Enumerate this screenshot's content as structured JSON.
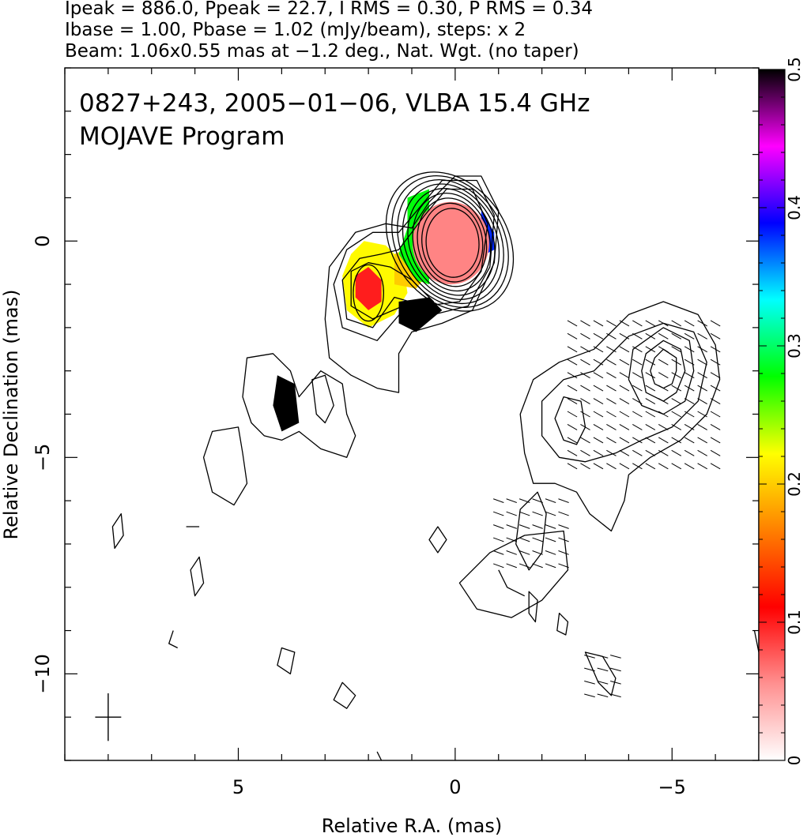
{
  "header": {
    "line1": "Ipeak = 886.0, Ppeak = 22.7, I RMS = 0.30, P RMS = 0.34",
    "line2": "Ibase = 1.00, Pbase = 1.02 (mJy/beam), steps: x 2",
    "line3": "Beam: 1.06x0.55 mas at −1.2 deg., Nat. Wgt. (no taper)"
  },
  "chart_data": {
    "type": "heatmap",
    "title": "0827+243, 2005−01−06, VLBA 15.4 GHz",
    "subtitle": "MOJAVE Program",
    "xlabel": "Relative R.A. (mas)",
    "ylabel": "Relative Declination (mas)",
    "xlim": [
      9.0,
      -7.0
    ],
    "ylim": [
      -12.0,
      4.0
    ],
    "x_ticks": [
      5,
      0,
      -5
    ],
    "x_tick_labels": [
      "5",
      "0",
      "−5"
    ],
    "y_ticks": [
      0,
      -5,
      -10
    ],
    "y_tick_labels": [
      "0",
      "−5",
      "−10"
    ],
    "colorbar": {
      "range": [
        0,
        0.5
      ],
      "ticks": [
        0,
        0.1,
        0.2,
        0.3,
        0.4,
        0.5
      ],
      "tick_labels": [
        "0",
        "0.1",
        "0.2",
        "0.3",
        "0.4",
        "0.5"
      ],
      "stops": [
        "#ffffff",
        "#ff9090",
        "#ff0000",
        "#ff8000",
        "#ffff00",
        "#00ff00",
        "#00ffff",
        "#0000ff",
        "#ff00ff",
        "#000000"
      ]
    },
    "core": {
      "x": 0.1,
      "y": -0.05,
      "rx": 0.52,
      "ry": 0.68,
      "angle": 0,
      "contour_levels": 9
    },
    "jet_knot": {
      "x": 2.0,
      "y": -1.2,
      "rx": 0.35,
      "ry": 0.65,
      "angle": 0
    },
    "outer_envelope": [
      [
        1.0,
        0.3
      ],
      [
        0.6,
        0.9
      ],
      [
        0.0,
        1.5
      ],
      [
        -0.6,
        1.5
      ],
      [
        -1.0,
        0.7
      ],
      [
        -0.9,
        -0.5
      ],
      [
        -0.4,
        -1.6
      ],
      [
        0.3,
        -1.9
      ],
      [
        1.0,
        -2.1
      ],
      [
        1.3,
        -2.6
      ],
      [
        1.3,
        -3.5
      ],
      [
        1.8,
        -3.4
      ],
      [
        2.4,
        -3.1
      ],
      [
        2.9,
        -2.7
      ],
      [
        3.0,
        -1.8
      ],
      [
        2.9,
        -0.6
      ],
      [
        2.3,
        0.2
      ],
      [
        1.6,
        0.4
      ]
    ],
    "jet_contours": [
      [
        [
          1.3,
          0.2
        ],
        [
          0.8,
          0.8
        ],
        [
          0.3,
          1.4
        ],
        [
          -0.5,
          1.4
        ],
        [
          -0.9,
          0.6
        ],
        [
          -0.8,
          -0.6
        ],
        [
          -0.3,
          -1.5
        ],
        [
          0.5,
          -1.7
        ],
        [
          1.2,
          -1.6
        ],
        [
          1.8,
          -2.3
        ],
        [
          2.6,
          -2.0
        ],
        [
          2.8,
          -1.0
        ],
        [
          2.5,
          -0.2
        ],
        [
          1.9,
          0.2
        ]
      ],
      [
        [
          1.3,
          -0.2
        ],
        [
          0.7,
          0.6
        ],
        [
          0.2,
          1.2
        ],
        [
          -0.4,
          1.2
        ],
        [
          -0.75,
          0.4
        ],
        [
          -0.6,
          -0.7
        ],
        [
          -0.1,
          -1.4
        ],
        [
          0.7,
          -1.5
        ],
        [
          1.4,
          -1.3
        ],
        [
          1.9,
          -2.0
        ],
        [
          2.5,
          -1.8
        ],
        [
          2.6,
          -0.9
        ],
        [
          2.2,
          -0.4
        ],
        [
          1.7,
          -0.3
        ]
      ],
      [
        [
          1.5,
          -0.6
        ],
        [
          1.0,
          -0.9
        ],
        [
          0.5,
          -1.4
        ],
        [
          1.2,
          -1.5
        ],
        [
          1.9,
          -1.8
        ],
        [
          2.4,
          -1.5
        ],
        [
          2.4,
          -0.7
        ],
        [
          2.0,
          -0.5
        ]
      ]
    ],
    "polarization_patches": [
      {
        "id": "knot-ring",
        "points": [
          [
            2.4,
            -0.3
          ],
          [
            2.6,
            -0.8
          ],
          [
            2.5,
            -1.6
          ],
          [
            2.0,
            -2.0
          ],
          [
            1.4,
            -1.7
          ],
          [
            1.1,
            -1.2
          ],
          [
            1.2,
            -0.5
          ],
          [
            1.6,
            -0.1
          ],
          [
            2.1,
            0.0
          ]
        ],
        "value": 0.22
      },
      {
        "id": "knot-inner",
        "points": [
          [
            2.0,
            -0.6
          ],
          [
            1.7,
            -0.9
          ],
          [
            1.7,
            -1.4
          ],
          [
            2.0,
            -1.6
          ],
          [
            2.3,
            -1.3
          ],
          [
            2.3,
            -0.8
          ]
        ],
        "value": 0.1
      },
      {
        "id": "bridge",
        "points": [
          [
            1.4,
            -0.3
          ],
          [
            0.7,
            0.0
          ],
          [
            0.5,
            -0.6
          ],
          [
            0.9,
            -1.1
          ],
          [
            1.4,
            -1.0
          ]
        ],
        "value": 0.2
      },
      {
        "id": "core-rim-east",
        "points": [
          [
            1.1,
            1.0
          ],
          [
            0.6,
            1.2
          ],
          [
            0.6,
            -1.0
          ],
          [
            0.9,
            -0.9
          ],
          [
            1.3,
            -0.3
          ],
          [
            1.1,
            0.3
          ]
        ],
        "value": 0.28
      },
      {
        "id": "core-rim-west",
        "points": [
          [
            -0.6,
            0.7
          ],
          [
            -0.9,
            0.2
          ],
          [
            -0.9,
            -0.2
          ],
          [
            -0.7,
            -0.3
          ],
          [
            -0.6,
            0.2
          ]
        ],
        "value": 0.38
      },
      {
        "id": "core-south",
        "points": [
          [
            1.3,
            -1.4
          ],
          [
            0.6,
            -1.3
          ],
          [
            0.3,
            -1.6
          ],
          [
            0.9,
            -2.1
          ],
          [
            1.3,
            -1.9
          ]
        ],
        "value": 0.5
      },
      {
        "id": "knot-far",
        "points": [
          [
            4.1,
            -3.1
          ],
          [
            3.7,
            -3.3
          ],
          [
            3.6,
            -4.2
          ],
          [
            4.0,
            -4.4
          ],
          [
            4.2,
            -3.8
          ]
        ],
        "value": 0.5
      }
    ],
    "components": [
      {
        "id": "west-blob",
        "contours": [
          [
            [
              -2.4,
              -2.8
            ],
            [
              -3.2,
              -2.5
            ],
            [
              -4.0,
              -1.7
            ],
            [
              -4.8,
              -1.4
            ],
            [
              -5.6,
              -1.7
            ],
            [
              -6.0,
              -2.4
            ],
            [
              -6.1,
              -3.2
            ],
            [
              -5.8,
              -4.0
            ],
            [
              -5.2,
              -4.6
            ],
            [
              -4.5,
              -5.0
            ],
            [
              -4.0,
              -5.4
            ],
            [
              -3.9,
              -6.0
            ],
            [
              -3.6,
              -6.7
            ],
            [
              -3.1,
              -6.3
            ],
            [
              -2.8,
              -5.8
            ],
            [
              -2.3,
              -5.6
            ],
            [
              -1.8,
              -5.6
            ],
            [
              -1.6,
              -4.9
            ],
            [
              -1.5,
              -4.0
            ],
            [
              -1.8,
              -3.2
            ]
          ],
          [
            [
              -2.5,
              -3.2
            ],
            [
              -3.2,
              -3.0
            ],
            [
              -4.0,
              -2.2
            ],
            [
              -4.8,
              -1.9
            ],
            [
              -5.5,
              -2.1
            ],
            [
              -5.8,
              -2.8
            ],
            [
              -5.6,
              -3.7
            ],
            [
              -5.0,
              -4.3
            ],
            [
              -4.3,
              -4.6
            ],
            [
              -3.7,
              -4.9
            ],
            [
              -3.0,
              -5.1
            ],
            [
              -2.4,
              -5.0
            ],
            [
              -2.0,
              -4.5
            ],
            [
              -2.0,
              -3.7
            ]
          ],
          [
            [
              -4.8,
              -2.0
            ],
            [
              -5.4,
              -2.3
            ],
            [
              -5.5,
              -3.0
            ],
            [
              -5.3,
              -3.7
            ],
            [
              -4.8,
              -4.0
            ],
            [
              -4.3,
              -3.8
            ],
            [
              -4.0,
              -3.2
            ],
            [
              -4.1,
              -2.5
            ]
          ],
          [
            [
              -4.8,
              -2.3
            ],
            [
              -5.2,
              -2.5
            ],
            [
              -5.3,
              -3.0
            ],
            [
              -5.1,
              -3.5
            ],
            [
              -4.8,
              -3.7
            ],
            [
              -4.4,
              -3.5
            ],
            [
              -4.3,
              -3.0
            ],
            [
              -4.4,
              -2.6
            ]
          ],
          [
            [
              -4.8,
              -2.5
            ],
            [
              -5.1,
              -2.7
            ],
            [
              -5.1,
              -3.0
            ],
            [
              -5.0,
              -3.3
            ],
            [
              -4.8,
              -3.4
            ],
            [
              -4.6,
              -3.3
            ],
            [
              -4.5,
              -3.0
            ],
            [
              -4.6,
              -2.7
            ]
          ],
          [
            [
              -2.5,
              -3.6
            ],
            [
              -2.9,
              -3.7
            ],
            [
              -3.0,
              -4.3
            ],
            [
              -2.8,
              -4.7
            ],
            [
              -2.5,
              -4.6
            ],
            [
              -2.3,
              -4.1
            ]
          ]
        ]
      },
      {
        "id": "south-knot",
        "contours": [
          [
            [
              4.8,
              -2.7
            ],
            [
              4.2,
              -2.6
            ],
            [
              3.8,
              -3.0
            ],
            [
              3.6,
              -3.6
            ],
            [
              3.1,
              -3.0
            ],
            [
              2.6,
              -3.3
            ],
            [
              2.5,
              -4.0
            ],
            [
              2.3,
              -4.5
            ],
            [
              2.5,
              -5.0
            ],
            [
              3.1,
              -4.8
            ],
            [
              3.6,
              -4.4
            ],
            [
              4.0,
              -4.6
            ],
            [
              4.4,
              -4.5
            ],
            [
              4.7,
              -4.2
            ],
            [
              4.9,
              -3.6
            ]
          ]
        ]
      },
      {
        "id": "east-blob",
        "contours": [
          [
            [
              5.0,
              -4.3
            ],
            [
              5.6,
              -4.4
            ],
            [
              5.8,
              -5.0
            ],
            [
              5.6,
              -5.8
            ],
            [
              5.1,
              -6.1
            ],
            [
              4.8,
              -5.6
            ],
            [
              4.9,
              -4.9
            ]
          ]
        ]
      },
      {
        "id": "mid-blob",
        "contours": [
          [
            [
              -0.8,
              -7.2
            ],
            [
              -1.6,
              -6.8
            ],
            [
              -2.5,
              -6.7
            ],
            [
              -2.6,
              -7.6
            ],
            [
              -2.0,
              -8.3
            ],
            [
              -1.3,
              -8.7
            ],
            [
              -0.5,
              -8.5
            ],
            [
              -0.1,
              -7.9
            ]
          ],
          [
            [
              -1.0,
              -7.6
            ],
            [
              -1.2,
              -8.0
            ],
            [
              -1.6,
              -8.2
            ]
          ],
          [
            [
              -1.5,
              -6.2
            ],
            [
              -1.9,
              -5.8
            ],
            [
              -2.1,
              -6.3
            ],
            [
              -2.0,
              -7.2
            ],
            [
              -1.7,
              -7.6
            ],
            [
              -1.4,
              -7.0
            ]
          ]
        ]
      },
      {
        "id": "far-west-pair",
        "contours": [
          [
            [
              -1.7,
              -8.1
            ],
            [
              -1.9,
              -8.3
            ],
            [
              -1.85,
              -8.8
            ],
            [
              -1.7,
              -8.6
            ]
          ],
          [
            [
              -2.4,
              -8.6
            ],
            [
              -2.6,
              -8.8
            ],
            [
              -2.55,
              -9.1
            ],
            [
              -2.35,
              -9.0
            ]
          ]
        ]
      },
      {
        "id": "small-knots",
        "contours": [
          [
            [
              7.7,
              -6.3
            ],
            [
              7.9,
              -6.6
            ],
            [
              7.85,
              -7.1
            ],
            [
              7.65,
              -6.8
            ]
          ],
          [
            [
              5.9,
              -7.3
            ],
            [
              6.1,
              -7.6
            ],
            [
              6.0,
              -8.2
            ],
            [
              5.8,
              -7.9
            ]
          ],
          [
            [
              5.9,
              -6.6
            ],
            [
              6.2,
              -6.6
            ]
          ],
          [
            [
              4.0,
              -9.4
            ],
            [
              4.1,
              -9.8
            ],
            [
              3.8,
              -10.0
            ],
            [
              3.7,
              -9.5
            ]
          ],
          [
            [
              2.6,
              -10.2
            ],
            [
              2.8,
              -10.6
            ],
            [
              2.5,
              -10.8
            ],
            [
              2.3,
              -10.5
            ]
          ],
          [
            [
              1.8,
              -11.8
            ],
            [
              1.7,
              -12.0
            ]
          ],
          [
            [
              0.4,
              -6.6
            ],
            [
              0.6,
              -6.9
            ],
            [
              0.4,
              -7.2
            ],
            [
              0.2,
              -6.9
            ]
          ],
          [
            [
              -3.0,
              -9.5
            ],
            [
              -3.4,
              -9.6
            ],
            [
              -3.7,
              -10.1
            ],
            [
              -3.6,
              -10.5
            ],
            [
              -3.3,
              -10.2
            ]
          ],
          [
            [
              -6.9,
              -9.0
            ],
            [
              -7.0,
              -9.5
            ]
          ],
          [
            [
              6.5,
              -9.0
            ],
            [
              6.6,
              -9.3
            ],
            [
              6.4,
              -9.4
            ]
          ]
        ]
      },
      {
        "id": "east-far-knot",
        "contours": [
          [
            [
              3.0,
              -3.1
            ],
            [
              3.3,
              -3.2
            ],
            [
              3.2,
              -4.0
            ],
            [
              3.0,
              -4.2
            ],
            [
              2.8,
              -3.8
            ]
          ]
        ]
      }
    ],
    "evpa_regions": [
      {
        "x": [
          -2.5,
          -6.0
        ],
        "y": [
          -1.8,
          -5.2
        ],
        "angle_deg": 60
      },
      {
        "x": [
          -1.0,
          -2.5
        ],
        "y": [
          -6.0,
          -7.5
        ],
        "angle_deg": 70
      },
      {
        "x": [
          -3.1,
          -3.7
        ],
        "y": [
          -9.3,
          -10.5
        ],
        "angle_deg": 75
      }
    ],
    "beam_marker": {
      "x": 8.0,
      "y": -11.0,
      "size": 0.5
    }
  }
}
